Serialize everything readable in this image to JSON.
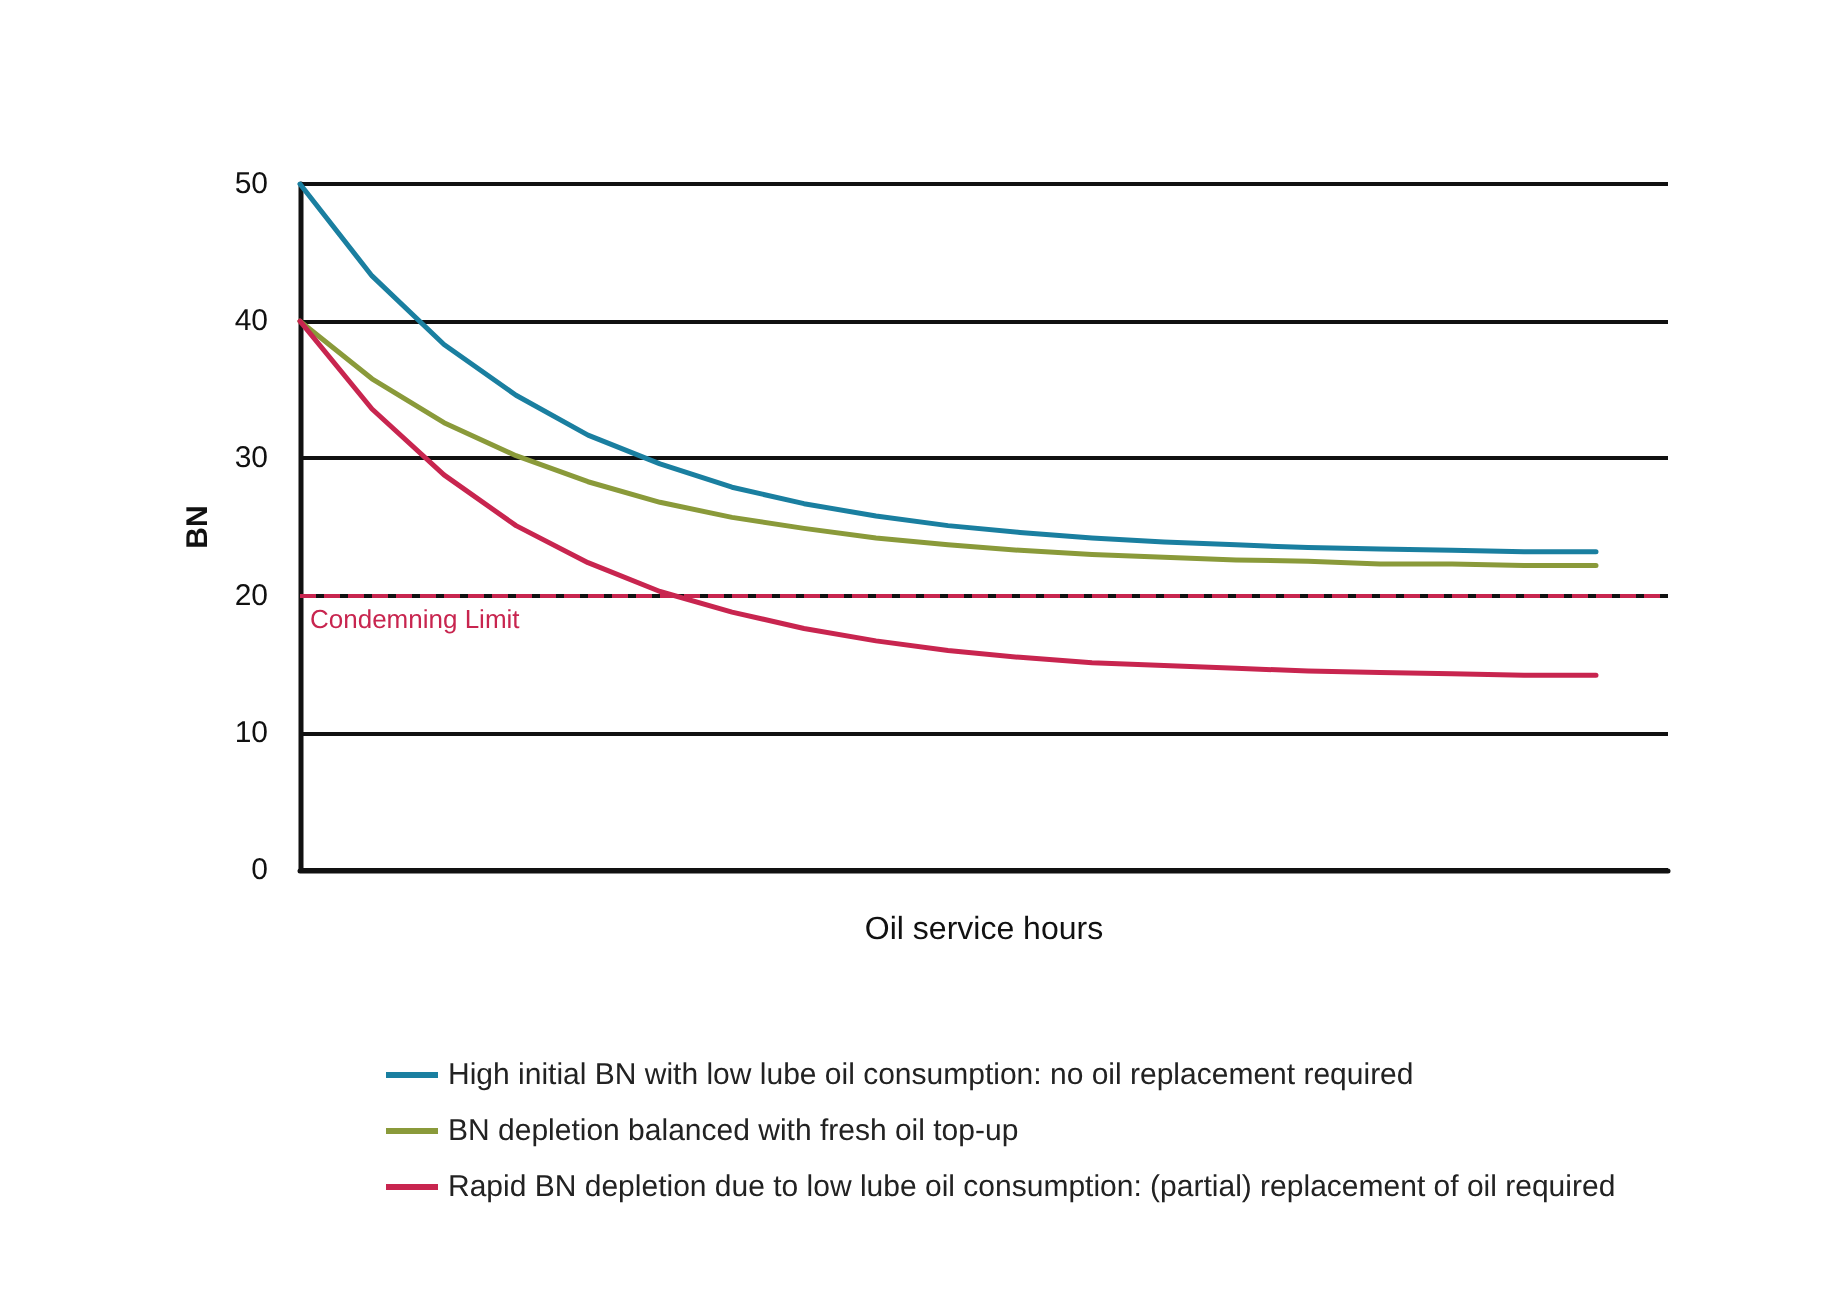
{
  "chart_data": {
    "type": "line",
    "xlabel": "Oil service hours",
    "ylabel": "BN",
    "categories": [
      null,
      null,
      null,
      null,
      null,
      null,
      null,
      null,
      null,
      null,
      null,
      null,
      null,
      null,
      null,
      null,
      null,
      null,
      null,
      null
    ],
    "series": [
      {
        "name": "High initial BN with low lube oil consumption: no oil replacement required",
        "color": "#1a7fa0",
        "values": [
          50,
          43.3,
          38.3,
          34.6,
          31.7,
          29.6,
          27.9,
          26.7,
          25.8,
          25.1,
          24.6,
          24.2,
          23.9,
          23.7,
          23.5,
          23.4,
          23.3,
          23.2,
          23.2,
          null
        ]
      },
      {
        "name": "BN depletion balanced with fresh oil top-up",
        "color": "#8a9a3a",
        "values": [
          40,
          35.8,
          32.6,
          30.2,
          28.3,
          26.8,
          25.7,
          24.9,
          24.2,
          23.7,
          23.3,
          23.0,
          22.8,
          22.6,
          22.5,
          22.3,
          22.3,
          22.2,
          22.2,
          null
        ]
      },
      {
        "name": "Rapid BN depletion due to low lube oil consumption: (partial) replacement of oil required",
        "color": "#c8254f",
        "values": [
          40,
          33.6,
          28.8,
          25.1,
          22.4,
          20.3,
          18.8,
          17.6,
          16.7,
          16.0,
          15.5,
          15.1,
          14.9,
          14.7,
          14.5,
          14.4,
          14.3,
          14.2,
          14.2,
          null
        ]
      }
    ],
    "ylim": [
      0,
      50
    ],
    "yticks": [
      0,
      10,
      20,
      30,
      40,
      50
    ],
    "grid": "y",
    "legend": "bottom",
    "marker": "none",
    "line_style": "solid",
    "ref_lines": [
      {
        "axis": "y",
        "value": 20,
        "label": "Condemning Limit",
        "color": "#c8254f",
        "line_style": "dashed"
      }
    ]
  }
}
